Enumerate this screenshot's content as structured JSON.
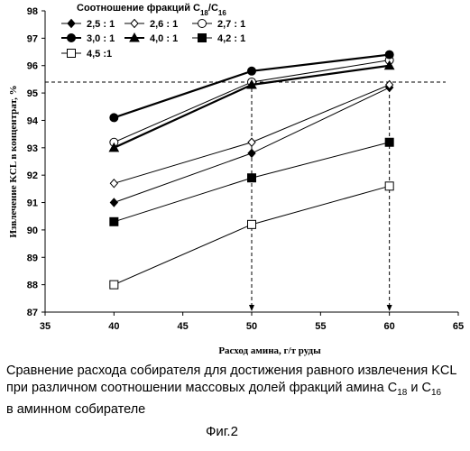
{
  "chart_data": {
    "type": "line",
    "xlabel": "Расход амина, г/т руды",
    "ylabel": "Извлечение KCL в концентрат, %",
    "xlim": [
      35,
      65
    ],
    "ylim": [
      87,
      98
    ],
    "xticks": [
      35,
      40,
      45,
      50,
      55,
      60,
      65
    ],
    "yticks": [
      87,
      88,
      89,
      90,
      91,
      92,
      93,
      94,
      95,
      96,
      97,
      98
    ],
    "grid": false,
    "legend_title": "Соотношение фракций C18/C16",
    "legend_position": "top-left",
    "reference_line_y": 95.4,
    "reference_drop_x": [
      50,
      60
    ],
    "x": [
      40,
      50,
      60
    ],
    "series": [
      {
        "name": "2,5 : 1",
        "marker": "diamond-filled",
        "values": [
          91.0,
          92.8,
          95.2
        ]
      },
      {
        "name": "2,6 : 1",
        "marker": "diamond-open",
        "values": [
          91.7,
          93.2,
          95.3
        ]
      },
      {
        "name": "2,7 : 1",
        "marker": "circle-open",
        "values": [
          93.2,
          95.4,
          96.2
        ]
      },
      {
        "name": "3,0 : 1",
        "marker": "circle-filled",
        "values": [
          94.1,
          95.8,
          96.4
        ]
      },
      {
        "name": "4,0 : 1",
        "marker": "triangle-filled",
        "values": [
          93.0,
          95.3,
          96.0
        ]
      },
      {
        "name": "4,2 : 1",
        "marker": "square-filled",
        "values": [
          90.3,
          91.9,
          93.2
        ]
      },
      {
        "name": "4,5 :1",
        "marker": "square-open",
        "values": [
          88.0,
          90.2,
          91.6
        ]
      }
    ]
  },
  "caption": {
    "line1": "Сравнение расхода собирателя для достижения равного извлечения KCL",
    "line2": "при различном соотношении массовых долей фракций амина C18 и C16",
    "line3": "в аминном собирателе"
  },
  "figure_label": "Фиг.2"
}
